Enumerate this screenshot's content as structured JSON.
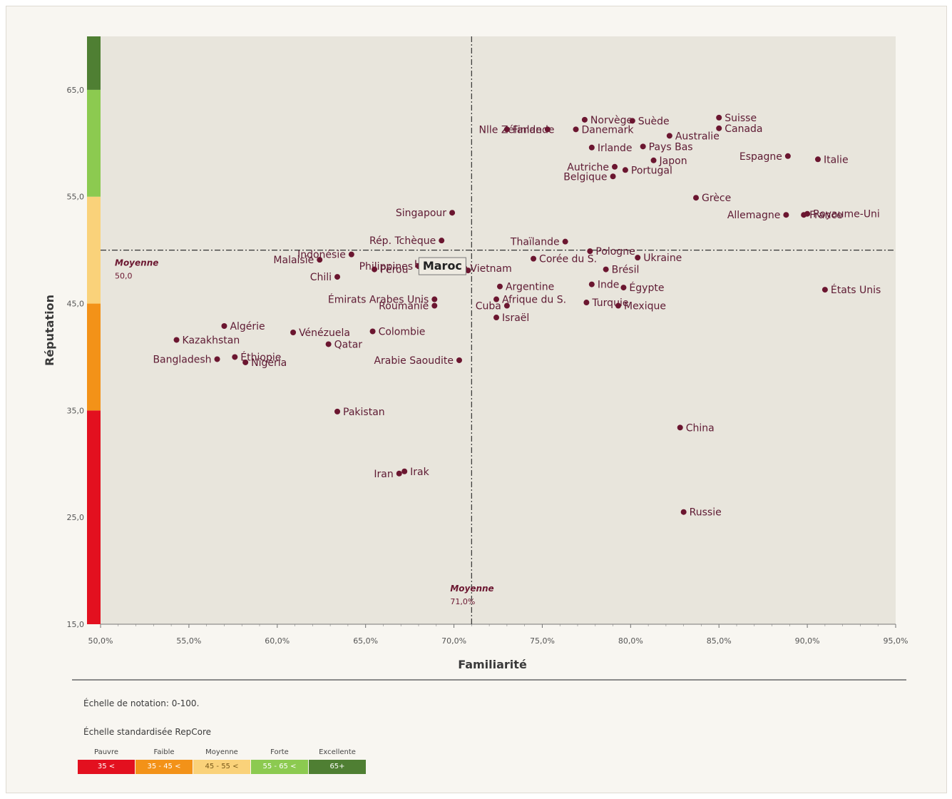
{
  "chart_data": {
    "type": "scatter",
    "xlabel": "Familiarité",
    "ylabel": "Réputation",
    "xlim": [
      50,
      95
    ],
    "ylim": [
      15,
      70
    ],
    "x_ticks": [
      "50,0%",
      "55,0%",
      "60,0%",
      "65,0%",
      "70,0%",
      "75,0%",
      "80,0%",
      "85,0%",
      "90,0%",
      "95,0%"
    ],
    "y_ticks": [
      "15,0",
      "25,0",
      "35,0",
      "45,0",
      "55,0",
      "65,0"
    ],
    "mean_x": {
      "label": "Moyenne",
      "value_text": "71,0%",
      "value": 71.0
    },
    "mean_y": {
      "label": "Moyenne",
      "value_text": "50,0",
      "value": 50.0
    },
    "highlight": "Maroc",
    "bands": [
      {
        "from": 15,
        "to": 35,
        "color": "#e3101f"
      },
      {
        "from": 35,
        "to": 45,
        "color": "#f39218"
      },
      {
        "from": 45,
        "to": 55,
        "color": "#fad27a"
      },
      {
        "from": 55,
        "to": 65,
        "color": "#8cca50"
      },
      {
        "from": 65,
        "to": 70,
        "color": "#4f7f33"
      }
    ],
    "points": [
      {
        "name": "Finlande",
        "x": 73.0,
        "y": 61.3,
        "anchor": "start"
      },
      {
        "name": "Nlle Zélande",
        "x": 75.3,
        "y": 61.3,
        "anchor": "end"
      },
      {
        "name": "Norvège",
        "x": 77.4,
        "y": 62.2,
        "anchor": "start"
      },
      {
        "name": "Danemark",
        "x": 76.9,
        "y": 61.3,
        "anchor": "start"
      },
      {
        "name": "Suède",
        "x": 80.1,
        "y": 62.1,
        "anchor": "start"
      },
      {
        "name": "Suisse",
        "x": 85.0,
        "y": 62.4,
        "anchor": "start"
      },
      {
        "name": "Canada",
        "x": 85.0,
        "y": 61.4,
        "anchor": "start"
      },
      {
        "name": "Australie",
        "x": 82.2,
        "y": 60.7,
        "anchor": "start"
      },
      {
        "name": "Irlande",
        "x": 77.8,
        "y": 59.6,
        "anchor": "start"
      },
      {
        "name": "Pays Bas",
        "x": 80.7,
        "y": 59.7,
        "anchor": "start"
      },
      {
        "name": "Espagne",
        "x": 88.9,
        "y": 58.8,
        "anchor": "end"
      },
      {
        "name": "Italie",
        "x": 90.6,
        "y": 58.5,
        "anchor": "start"
      },
      {
        "name": "Japon",
        "x": 81.3,
        "y": 58.4,
        "anchor": "start"
      },
      {
        "name": "Autriche",
        "x": 79.1,
        "y": 57.8,
        "anchor": "end"
      },
      {
        "name": "Portugal",
        "x": 79.7,
        "y": 57.5,
        "anchor": "start"
      },
      {
        "name": "Belgique",
        "x": 79.0,
        "y": 56.9,
        "anchor": "end"
      },
      {
        "name": "Grèce",
        "x": 83.7,
        "y": 54.9,
        "anchor": "start"
      },
      {
        "name": "Royaume-Uni",
        "x": 90.0,
        "y": 53.4,
        "anchor": "start"
      },
      {
        "name": "France",
        "x": 89.8,
        "y": 53.3,
        "anchor": "start"
      },
      {
        "name": "Allemagne",
        "x": 88.8,
        "y": 53.3,
        "anchor": "end"
      },
      {
        "name": "Singapour",
        "x": 69.9,
        "y": 53.5,
        "anchor": "end"
      },
      {
        "name": "Rép. Tchèque",
        "x": 69.3,
        "y": 50.9,
        "anchor": "end"
      },
      {
        "name": "Thaïlande",
        "x": 76.3,
        "y": 50.8,
        "anchor": "end"
      },
      {
        "name": "Pologne",
        "x": 77.7,
        "y": 49.9,
        "anchor": "start"
      },
      {
        "name": "Indonésie",
        "x": 64.2,
        "y": 49.6,
        "anchor": "end"
      },
      {
        "name": "Malaisie",
        "x": 62.4,
        "y": 49.1,
        "anchor": "end"
      },
      {
        "name": "Hongrie",
        "x": 70.3,
        "y": 48.7,
        "anchor": "end"
      },
      {
        "name": "Vietnam",
        "x": 70.6,
        "y": 48.3,
        "anchor": "start"
      },
      {
        "name": "Corée du S.",
        "x": 74.5,
        "y": 49.2,
        "anchor": "start"
      },
      {
        "name": "Ukraine",
        "x": 80.4,
        "y": 49.3,
        "anchor": "start"
      },
      {
        "name": "Philippines",
        "x": 68.0,
        "y": 48.5,
        "anchor": "end"
      },
      {
        "name": "Pérou",
        "x": 65.5,
        "y": 48.2,
        "anchor": "start"
      },
      {
        "name": "Brésil",
        "x": 78.6,
        "y": 48.2,
        "anchor": "start"
      },
      {
        "name": "Maroc",
        "x": 70.8,
        "y": 48.1,
        "anchor": "end"
      },
      {
        "name": "Chili",
        "x": 63.4,
        "y": 47.5,
        "anchor": "end"
      },
      {
        "name": "Inde",
        "x": 77.8,
        "y": 46.8,
        "anchor": "start"
      },
      {
        "name": "Argentine",
        "x": 72.6,
        "y": 46.6,
        "anchor": "start"
      },
      {
        "name": "Égypte",
        "x": 79.6,
        "y": 46.5,
        "anchor": "start"
      },
      {
        "name": "États Unis",
        "x": 91.0,
        "y": 46.3,
        "anchor": "start"
      },
      {
        "name": "Émirats Arabes Unis",
        "x": 68.9,
        "y": 45.4,
        "anchor": "end"
      },
      {
        "name": "Afrique du S.",
        "x": 72.4,
        "y": 45.4,
        "anchor": "start"
      },
      {
        "name": "Turquie",
        "x": 77.5,
        "y": 45.1,
        "anchor": "start"
      },
      {
        "name": "Roumanie",
        "x": 68.9,
        "y": 44.8,
        "anchor": "end"
      },
      {
        "name": "Cuba",
        "x": 73.0,
        "y": 44.8,
        "anchor": "end"
      },
      {
        "name": "Mexique",
        "x": 79.3,
        "y": 44.8,
        "anchor": "start"
      },
      {
        "name": "Israël",
        "x": 72.4,
        "y": 43.7,
        "anchor": "start"
      },
      {
        "name": "Algérie",
        "x": 57.0,
        "y": 42.9,
        "anchor": "start"
      },
      {
        "name": "Vénézuela",
        "x": 60.9,
        "y": 42.3,
        "anchor": "start"
      },
      {
        "name": "Colombie",
        "x": 65.4,
        "y": 42.4,
        "anchor": "start"
      },
      {
        "name": "Kazakhstan",
        "x": 54.3,
        "y": 41.6,
        "anchor": "start"
      },
      {
        "name": "Qatar",
        "x": 62.9,
        "y": 41.2,
        "anchor": "start"
      },
      {
        "name": "Éthiopie",
        "x": 57.6,
        "y": 40.0,
        "anchor": "start"
      },
      {
        "name": "Bangladesh",
        "x": 56.6,
        "y": 39.8,
        "anchor": "end"
      },
      {
        "name": "Nigéria",
        "x": 58.2,
        "y": 39.5,
        "anchor": "start"
      },
      {
        "name": "Arabie Saoudite",
        "x": 70.3,
        "y": 39.7,
        "anchor": "end"
      },
      {
        "name": "Pakistan",
        "x": 63.4,
        "y": 34.9,
        "anchor": "start"
      },
      {
        "name": "China",
        "x": 82.8,
        "y": 33.4,
        "anchor": "start"
      },
      {
        "name": "Iran",
        "x": 66.9,
        "y": 29.1,
        "anchor": "end"
      },
      {
        "name": "Irak",
        "x": 67.2,
        "y": 29.3,
        "anchor": "start"
      },
      {
        "name": "Russie",
        "x": 83.0,
        "y": 25.5,
        "anchor": "start"
      }
    ]
  },
  "footer": {
    "scale_note": "Échelle de notation: 0-100.",
    "standard_note": "Échelle standardisée RepCore",
    "legend": [
      {
        "name": "Pauvre",
        "range": "35 <",
        "color": "#e3101f"
      },
      {
        "name": "Faible",
        "range": "35 - 45 <",
        "color": "#f39218"
      },
      {
        "name": "Moyenne",
        "range": "45 - 55 <",
        "color": "#fad27a"
      },
      {
        "name": "Forte",
        "range": "55 - 65 <",
        "color": "#8cca50"
      },
      {
        "name": "Excellente",
        "range": "65+",
        "color": "#4f7f33"
      }
    ]
  }
}
